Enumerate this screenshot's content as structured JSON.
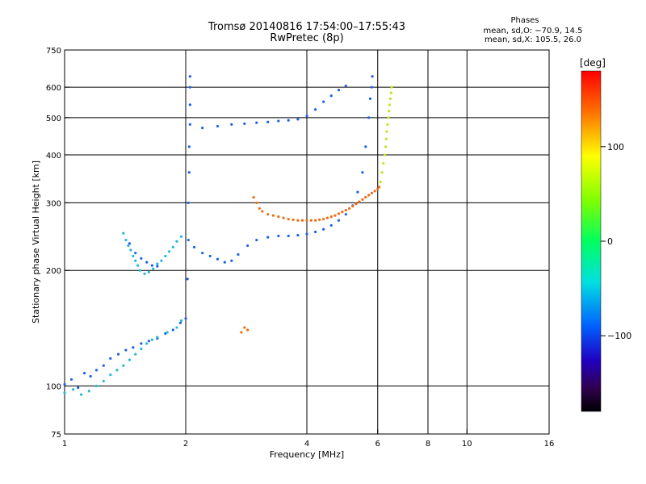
{
  "header": {
    "title": "Tromsø 20140816 17:54:00–17:55:43",
    "subtitle": "RwPretec (8p)"
  },
  "stats": {
    "title": "Phases",
    "line1": "mean, sd,O: −70.9, 14.5",
    "line2": "mean, sd,X: 105.5, 26.0"
  },
  "chart_data": {
    "type": "scatter",
    "xlabel": "Frequency [MHz]",
    "ylabel": "Stationary phase Virtual Height [km]",
    "x_scale": "log",
    "y_scale": "log",
    "xlim": [
      1,
      16
    ],
    "ylim": [
      75,
      750
    ],
    "x_ticks": [
      1,
      2,
      4,
      6,
      8,
      10,
      16
    ],
    "x_tick_labels": [
      "1",
      "2",
      "4",
      "6",
      "8",
      "10",
      "16"
    ],
    "y_ticks": [
      75,
      100,
      200,
      300,
      400,
      500,
      600,
      750
    ],
    "y_tick_labels": [
      "75",
      "100",
      "200",
      "300",
      "400",
      "500",
      "600",
      "750"
    ],
    "grid": true,
    "colorbar": {
      "label": "[deg]",
      "range": [
        -180,
        180
      ],
      "ticks": [
        100,
        0,
        -100
      ],
      "tick_labels": [
        "100",
        "0",
        "−100"
      ]
    },
    "series": [
      {
        "color": "#1e60e8",
        "phase_deg": -100,
        "points": [
          [
            1.0,
            101
          ],
          [
            1.04,
            104
          ],
          [
            1.08,
            99
          ],
          [
            1.12,
            108
          ],
          [
            1.16,
            106
          ],
          [
            1.2,
            110
          ],
          [
            1.25,
            113
          ],
          [
            1.3,
            118
          ],
          [
            1.36,
            121
          ],
          [
            1.42,
            124
          ],
          [
            1.48,
            126
          ],
          [
            1.55,
            129
          ],
          [
            1.62,
            131
          ],
          [
            1.7,
            133
          ],
          [
            1.78,
            137
          ],
          [
            1.86,
            140
          ],
          [
            1.94,
            146
          ],
          [
            2.0,
            150
          ],
          [
            2.02,
            190
          ],
          [
            2.03,
            240
          ],
          [
            2.03,
            300
          ],
          [
            2.04,
            360
          ],
          [
            2.04,
            420
          ],
          [
            2.05,
            480
          ],
          [
            2.05,
            540
          ],
          [
            2.05,
            600
          ],
          [
            2.05,
            640
          ],
          [
            2.1,
            230
          ],
          [
            2.2,
            222
          ],
          [
            2.3,
            218
          ],
          [
            2.4,
            214
          ],
          [
            2.5,
            210
          ],
          [
            2.6,
            212
          ],
          [
            2.7,
            220
          ],
          [
            2.85,
            232
          ],
          [
            3.0,
            240
          ],
          [
            3.2,
            244
          ],
          [
            3.4,
            246
          ],
          [
            3.6,
            246
          ],
          [
            3.8,
            247
          ],
          [
            4.0,
            249
          ],
          [
            4.2,
            252
          ],
          [
            4.4,
            256
          ],
          [
            4.6,
            262
          ],
          [
            4.8,
            270
          ],
          [
            5.0,
            280
          ],
          [
            5.2,
            295
          ],
          [
            5.35,
            320
          ],
          [
            5.5,
            360
          ],
          [
            5.6,
            420
          ],
          [
            5.7,
            500
          ],
          [
            5.75,
            560
          ],
          [
            5.8,
            600
          ],
          [
            5.82,
            640
          ],
          [
            2.2,
            470
          ],
          [
            2.4,
            475
          ],
          [
            2.6,
            480
          ],
          [
            2.8,
            482
          ],
          [
            3.0,
            485
          ],
          [
            3.2,
            487
          ],
          [
            3.4,
            490
          ],
          [
            3.6,
            492
          ],
          [
            3.8,
            495
          ],
          [
            4.0,
            505
          ],
          [
            4.2,
            525
          ],
          [
            4.4,
            550
          ],
          [
            4.6,
            570
          ],
          [
            4.8,
            590
          ],
          [
            5.0,
            605
          ],
          [
            1.45,
            235
          ],
          [
            1.5,
            222
          ],
          [
            1.55,
            215
          ],
          [
            1.6,
            210
          ],
          [
            1.65,
            206
          ],
          [
            1.7,
            205
          ]
        ]
      },
      {
        "color": "#22b8d8",
        "phase_deg": -60,
        "points": [
          [
            1.0,
            96
          ],
          [
            1.05,
            98
          ],
          [
            1.1,
            95
          ],
          [
            1.15,
            97
          ],
          [
            1.2,
            100
          ],
          [
            1.25,
            103
          ],
          [
            1.3,
            107
          ],
          [
            1.35,
            110
          ],
          [
            1.4,
            113
          ],
          [
            1.45,
            117
          ],
          [
            1.5,
            121
          ],
          [
            1.55,
            125
          ],
          [
            1.6,
            129
          ],
          [
            1.65,
            132
          ],
          [
            1.7,
            134
          ],
          [
            1.8,
            138
          ],
          [
            1.9,
            142
          ],
          [
            1.95,
            148
          ],
          [
            1.4,
            250
          ],
          [
            1.42,
            240
          ],
          [
            1.44,
            232
          ],
          [
            1.46,
            226
          ],
          [
            1.48,
            218
          ],
          [
            1.5,
            212
          ],
          [
            1.52,
            206
          ],
          [
            1.54,
            200
          ],
          [
            1.58,
            196
          ],
          [
            1.62,
            198
          ],
          [
            1.66,
            202
          ],
          [
            1.7,
            208
          ],
          [
            1.74,
            212
          ],
          [
            1.78,
            218
          ],
          [
            1.82,
            224
          ],
          [
            1.86,
            230
          ],
          [
            1.9,
            238
          ],
          [
            1.95,
            245
          ]
        ]
      },
      {
        "color": "#f06a10",
        "phase_deg": 150,
        "points": [
          [
            2.95,
            310
          ],
          [
            3.0,
            300
          ],
          [
            3.05,
            290
          ],
          [
            3.1,
            285
          ],
          [
            3.2,
            280
          ],
          [
            3.3,
            278
          ],
          [
            3.4,
            276
          ],
          [
            3.5,
            274
          ],
          [
            3.6,
            272
          ],
          [
            3.7,
            271
          ],
          [
            3.8,
            270
          ],
          [
            3.9,
            270
          ],
          [
            4.0,
            270
          ],
          [
            4.1,
            270
          ],
          [
            4.2,
            270
          ],
          [
            4.3,
            271
          ],
          [
            4.4,
            272
          ],
          [
            4.5,
            274
          ],
          [
            4.6,
            276
          ],
          [
            4.7,
            278
          ],
          [
            4.8,
            281
          ],
          [
            4.9,
            284
          ],
          [
            5.0,
            287
          ],
          [
            5.1,
            290
          ],
          [
            5.2,
            294
          ],
          [
            5.3,
            298
          ],
          [
            5.4,
            302
          ],
          [
            5.5,
            306
          ],
          [
            5.6,
            310
          ],
          [
            5.7,
            314
          ],
          [
            5.8,
            318
          ],
          [
            5.9,
            322
          ],
          [
            6.0,
            326
          ],
          [
            6.05,
            330
          ],
          [
            2.75,
            138
          ],
          [
            2.8,
            142
          ],
          [
            2.85,
            140
          ]
        ]
      },
      {
        "color": "#c8e020",
        "phase_deg": 100,
        "points": [
          [
            6.1,
            340
          ],
          [
            6.15,
            360
          ],
          [
            6.2,
            380
          ],
          [
            6.25,
            400
          ],
          [
            6.28,
            420
          ],
          [
            6.3,
            440
          ],
          [
            6.32,
            460
          ],
          [
            6.35,
            480
          ],
          [
            6.38,
            500
          ],
          [
            6.4,
            520
          ],
          [
            6.42,
            540
          ],
          [
            6.45,
            560
          ],
          [
            6.48,
            580
          ],
          [
            6.5,
            600
          ]
        ]
      }
    ]
  }
}
